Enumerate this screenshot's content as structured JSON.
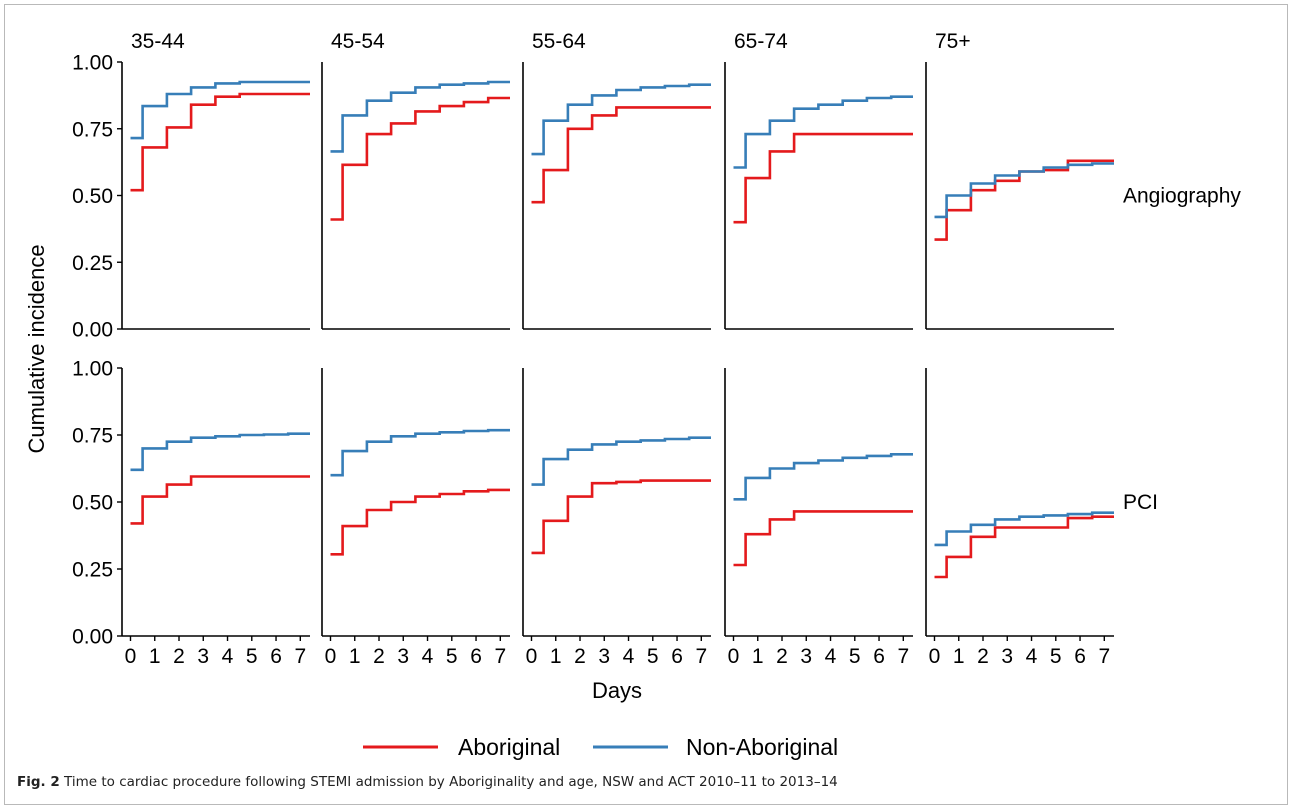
{
  "caption": {
    "label": "Fig. 2",
    "text": " Time to cardiac procedure following STEMI admission by Aboriginality and age, NSW and ACT 2010–11 to 2013–14"
  },
  "chart_data": {
    "type": "line",
    "step": true,
    "xlabel": "Days",
    "ylabel": "Cumulative incidence",
    "xlim": [
      -0.35,
      7.4
    ],
    "ylim": [
      0,
      1
    ],
    "x_ticks": [
      0,
      1,
      2,
      3,
      4,
      5,
      6,
      7
    ],
    "y_ticks": [
      "0.00",
      "0.25",
      "0.50",
      "0.75",
      "1.00"
    ],
    "age_groups": [
      "35-44",
      "45-54",
      "55-64",
      "65-74",
      "75+"
    ],
    "procedures": [
      "Angiography",
      "PCI"
    ],
    "legend": {
      "position": "bottom",
      "entries": [
        {
          "name": "Aboriginal",
          "color": "#e41a1c"
        },
        {
          "name": "Non-Aboriginal",
          "color": "#377eb8"
        }
      ]
    },
    "x_steps": [
      0,
      0.5,
      1.5,
      2.5,
      3.5,
      4.5,
      5.5,
      6.5,
      7.4
    ],
    "panels": [
      {
        "procedure": "Angiography",
        "age": "35-44",
        "series": [
          {
            "name": "Aboriginal",
            "values": [
              0.52,
              0.68,
              0.755,
              0.84,
              0.87,
              0.88,
              0.88,
              0.88
            ]
          },
          {
            "name": "Non-Aboriginal",
            "values": [
              0.715,
              0.835,
              0.88,
              0.905,
              0.92,
              0.925,
              0.925,
              0.925
            ]
          }
        ]
      },
      {
        "procedure": "Angiography",
        "age": "45-54",
        "series": [
          {
            "name": "Aboriginal",
            "values": [
              0.41,
              0.615,
              0.73,
              0.77,
              0.815,
              0.835,
              0.85,
              0.865
            ]
          },
          {
            "name": "Non-Aboriginal",
            "values": [
              0.665,
              0.8,
              0.855,
              0.885,
              0.905,
              0.915,
              0.92,
              0.925
            ]
          }
        ]
      },
      {
        "procedure": "Angiography",
        "age": "55-64",
        "series": [
          {
            "name": "Aboriginal",
            "values": [
              0.475,
              0.595,
              0.75,
              0.8,
              0.83,
              0.83,
              0.83,
              0.83
            ]
          },
          {
            "name": "Non-Aboriginal",
            "values": [
              0.655,
              0.78,
              0.84,
              0.875,
              0.895,
              0.905,
              0.91,
              0.915
            ]
          }
        ]
      },
      {
        "procedure": "Angiography",
        "age": "65-74",
        "series": [
          {
            "name": "Aboriginal",
            "values": [
              0.4,
              0.565,
              0.665,
              0.73,
              0.73,
              0.73,
              0.73,
              0.73
            ]
          },
          {
            "name": "Non-Aboriginal",
            "values": [
              0.605,
              0.73,
              0.78,
              0.825,
              0.84,
              0.855,
              0.865,
              0.87
            ]
          }
        ]
      },
      {
        "procedure": "Angiography",
        "age": "75+",
        "series": [
          {
            "name": "Aboriginal",
            "values": [
              0.335,
              0.445,
              0.52,
              0.555,
              0.59,
              0.595,
              0.63,
              0.63
            ]
          },
          {
            "name": "Non-Aboriginal",
            "values": [
              0.42,
              0.5,
              0.545,
              0.575,
              0.59,
              0.605,
              0.615,
              0.62
            ]
          }
        ]
      },
      {
        "procedure": "PCI",
        "age": "35-44",
        "series": [
          {
            "name": "Aboriginal",
            "values": [
              0.42,
              0.52,
              0.565,
              0.595,
              0.595,
              0.595,
              0.595,
              0.595
            ]
          },
          {
            "name": "Non-Aboriginal",
            "values": [
              0.62,
              0.7,
              0.725,
              0.74,
              0.745,
              0.75,
              0.752,
              0.755
            ]
          }
        ]
      },
      {
        "procedure": "PCI",
        "age": "45-54",
        "series": [
          {
            "name": "Aboriginal",
            "values": [
              0.305,
              0.41,
              0.47,
              0.5,
              0.52,
              0.53,
              0.54,
              0.545
            ]
          },
          {
            "name": "Non-Aboriginal",
            "values": [
              0.6,
              0.69,
              0.725,
              0.745,
              0.755,
              0.76,
              0.765,
              0.768
            ]
          }
        ]
      },
      {
        "procedure": "PCI",
        "age": "55-64",
        "series": [
          {
            "name": "Aboriginal",
            "values": [
              0.31,
              0.43,
              0.52,
              0.57,
              0.575,
              0.58,
              0.58,
              0.58
            ]
          },
          {
            "name": "Non-Aboriginal",
            "values": [
              0.565,
              0.66,
              0.695,
              0.715,
              0.725,
              0.73,
              0.735,
              0.74
            ]
          }
        ]
      },
      {
        "procedure": "PCI",
        "age": "65-74",
        "series": [
          {
            "name": "Aboriginal",
            "values": [
              0.265,
              0.38,
              0.435,
              0.465,
              0.465,
              0.465,
              0.465,
              0.465
            ]
          },
          {
            "name": "Non-Aboriginal",
            "values": [
              0.51,
              0.59,
              0.625,
              0.645,
              0.655,
              0.665,
              0.672,
              0.678
            ]
          }
        ]
      },
      {
        "procedure": "PCI",
        "age": "75+",
        "series": [
          {
            "name": "Aboriginal",
            "values": [
              0.22,
              0.295,
              0.37,
              0.405,
              0.405,
              0.405,
              0.44,
              0.445
            ]
          },
          {
            "name": "Non-Aboriginal",
            "values": [
              0.34,
              0.39,
              0.415,
              0.435,
              0.445,
              0.45,
              0.455,
              0.46
            ]
          }
        ]
      }
    ]
  }
}
